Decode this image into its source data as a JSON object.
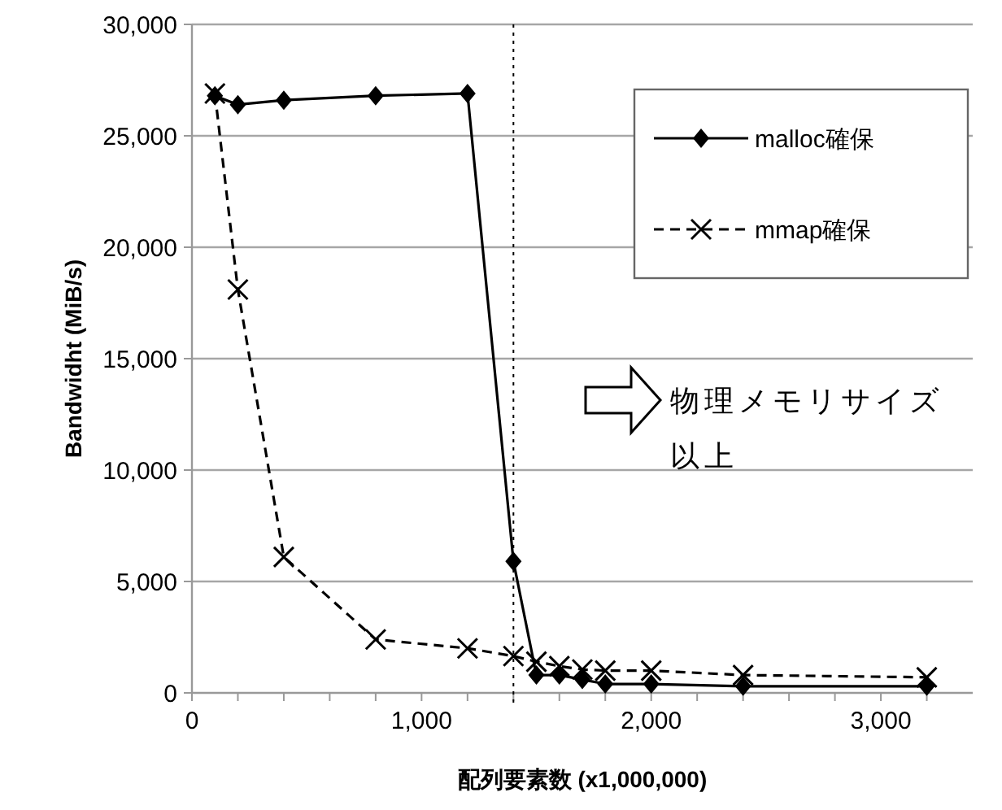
{
  "chart_data": {
    "type": "line",
    "xlabel": "配列要素数 (x1,000,000)",
    "ylabel": "Bandwidht (MiB/s)",
    "xlim": [
      0,
      3400
    ],
    "xticks": [
      0,
      {
        "value": 200,
        "label": null
      },
      {
        "value": 400,
        "label": null
      },
      {
        "value": 600,
        "label": null
      },
      {
        "value": 800,
        "label": null
      },
      {
        "value": 1000,
        "label": "1,000"
      },
      {
        "value": 1200,
        "label": null
      },
      {
        "value": 1400,
        "label": null
      },
      {
        "value": 1600,
        "label": null
      },
      {
        "value": 1800,
        "label": null
      },
      {
        "value": 2000,
        "label": "2,000"
      },
      {
        "value": 2200,
        "label": null
      },
      {
        "value": 2400,
        "label": null
      },
      {
        "value": 2600,
        "label": null
      },
      {
        "value": 2800,
        "label": null
      },
      {
        "value": 3000,
        "label": "3,000"
      },
      {
        "value": 3200,
        "label": null
      }
    ],
    "ylim": [
      0,
      30000
    ],
    "yticks": [
      0,
      {
        "value": 5000,
        "label": "5,000"
      },
      {
        "value": 10000,
        "label": "10,000"
      },
      {
        "value": 15000,
        "label": "15,000"
      },
      {
        "value": 20000,
        "label": "20,000"
      },
      {
        "value": 25000,
        "label": "25,000"
      },
      {
        "value": 30000,
        "label": "30,000"
      }
    ],
    "x": [
      100,
      200,
      400,
      800,
      1200,
      1400,
      1500,
      1600,
      1700,
      1800,
      2000,
      2400,
      3200
    ],
    "series": [
      {
        "name": "malloc確保",
        "color": "#000000",
        "marker": "diamond",
        "line_style": "solid",
        "values": [
          26800,
          26400,
          26600,
          26800,
          26900,
          5900,
          800,
          800,
          600,
          400,
          400,
          300,
          300
        ]
      },
      {
        "name": "mmap確保",
        "color": "#000000",
        "marker": "cross",
        "line_style": "dashed",
        "values": [
          26900,
          18100,
          6100,
          2400,
          2000,
          1650,
          1400,
          1200,
          1050,
          1000,
          1000,
          800,
          700
        ]
      }
    ],
    "grid": "y",
    "legend": "top right",
    "ref_lines": [
      {
        "axis": "x",
        "value": 1400,
        "line_style": "dotted",
        "color": "#000000"
      }
    ],
    "annotations": [
      "物理メモリサイズ以上"
    ]
  }
}
